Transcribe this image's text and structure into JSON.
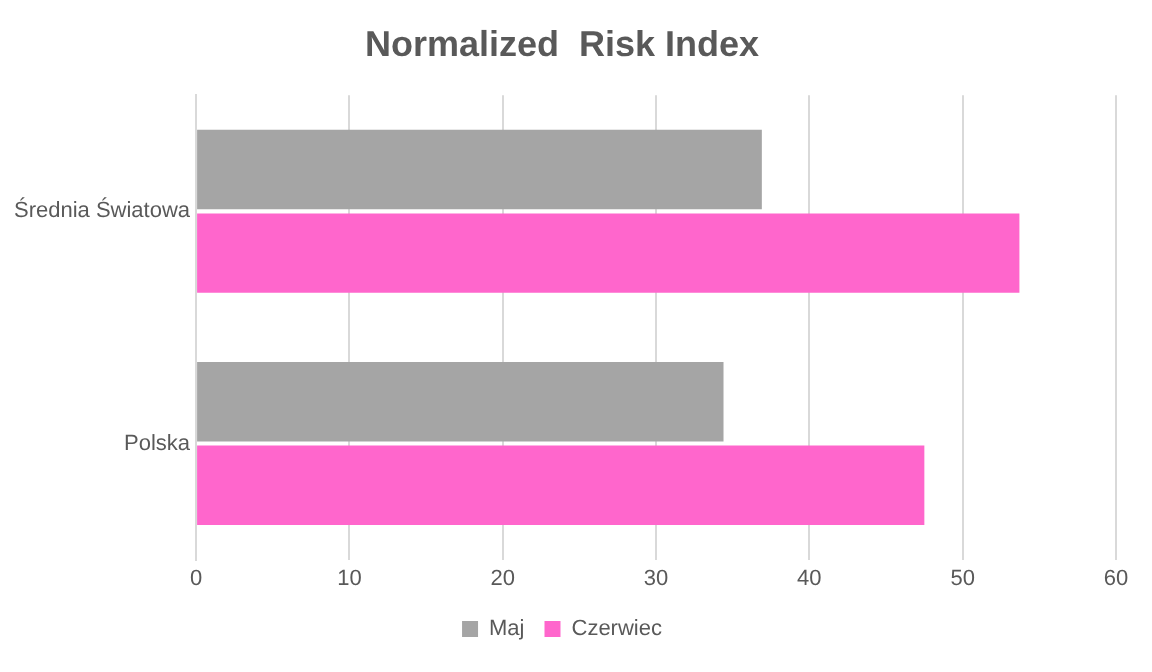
{
  "chart_data": {
    "type": "bar",
    "orientation": "horizontal",
    "title": "Normalized  Risk Index",
    "categories": [
      "Średnia Światowa",
      "Polska"
    ],
    "series": [
      {
        "name": "Maj",
        "color": "#a5a5a5",
        "values": [
          36.9,
          34.4
        ]
      },
      {
        "name": "Czerwiec",
        "color": "#ff66cc",
        "values": [
          53.7,
          47.5
        ]
      }
    ],
    "xlim": [
      0,
      60
    ],
    "xticks": [
      0,
      10,
      20,
      30,
      40,
      50,
      60
    ],
    "grid": "x",
    "legend": "bottom"
  }
}
